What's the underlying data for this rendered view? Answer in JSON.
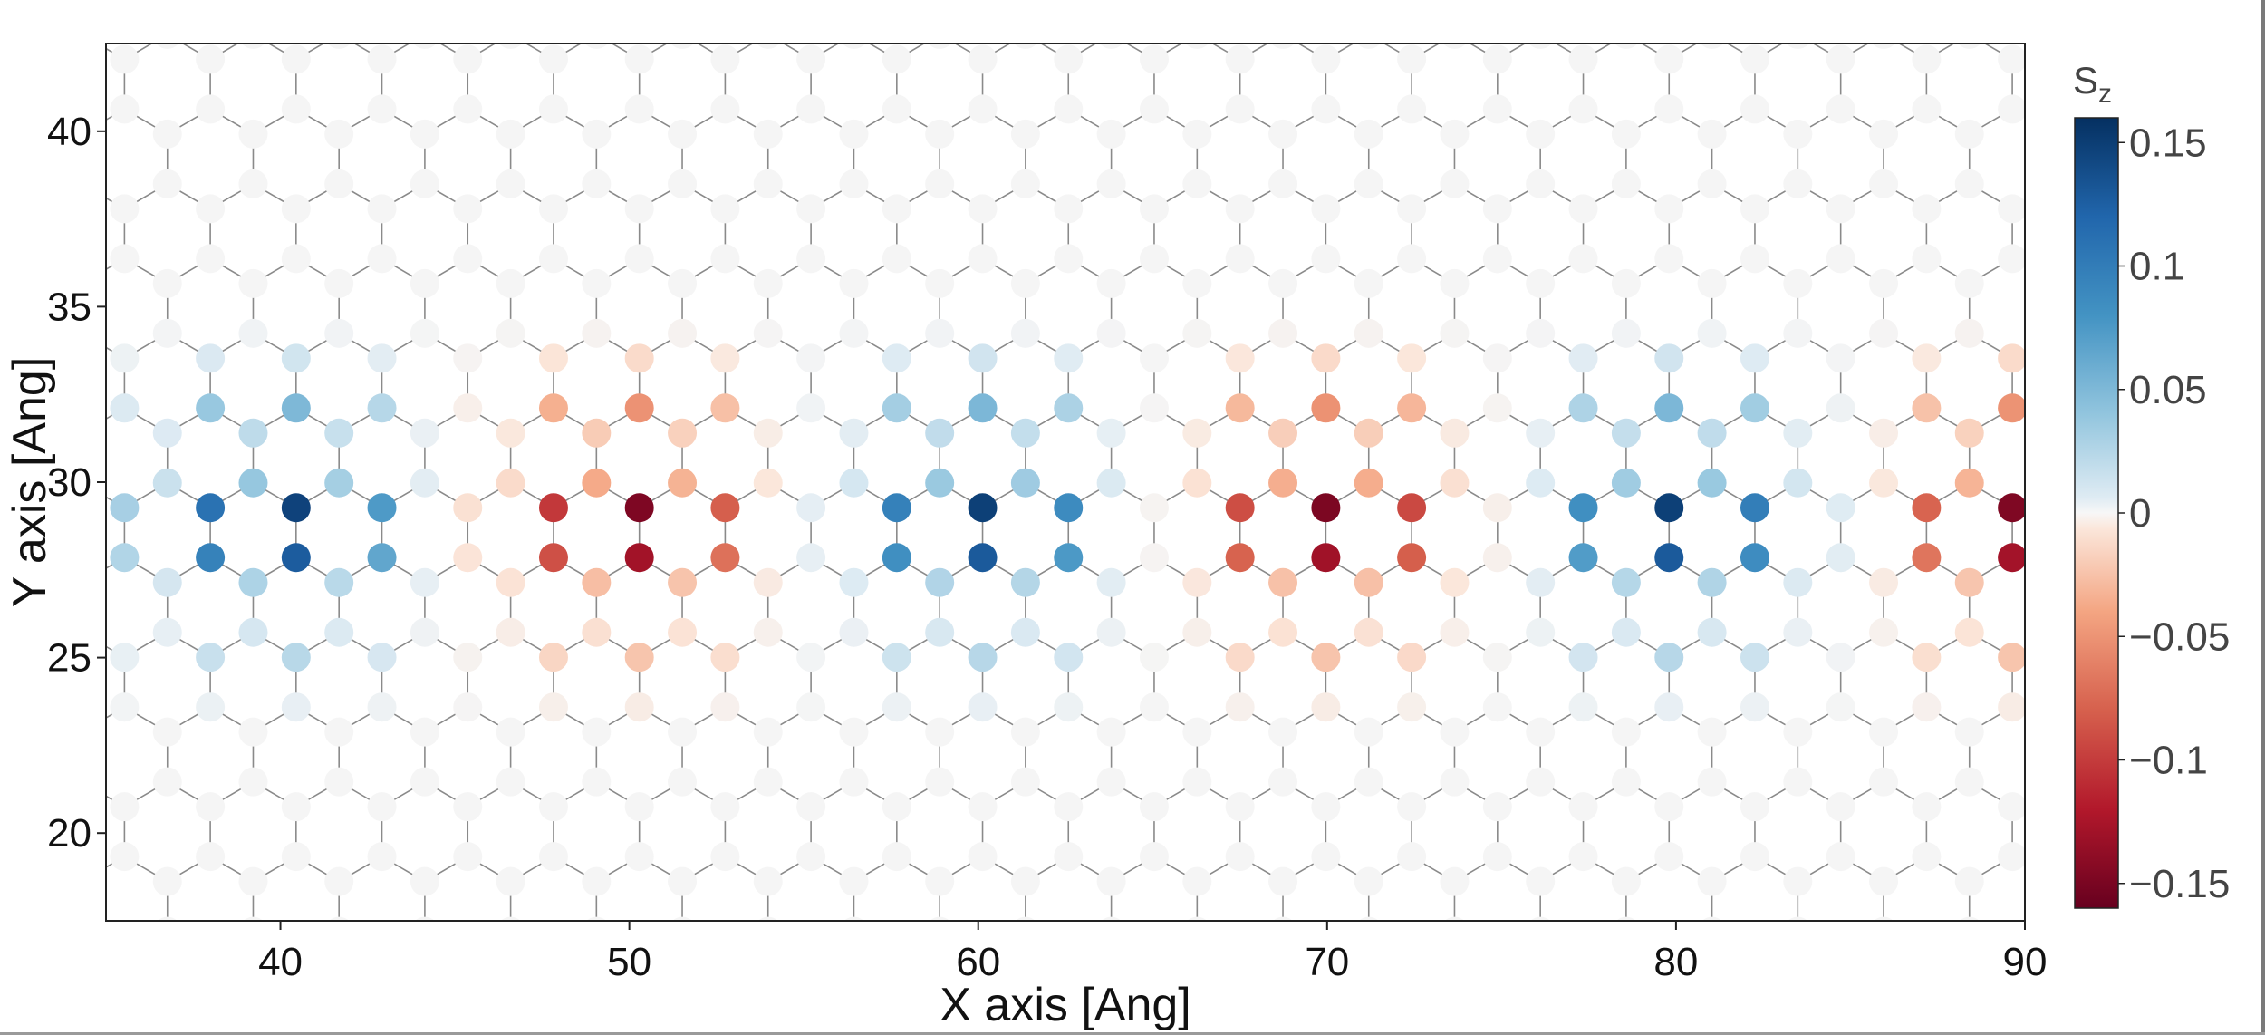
{
  "chart_data": {
    "type": "scatter",
    "title": "",
    "xlabel": "X axis [Ang]",
    "ylabel": "Y axis [Ang]",
    "xlim": [
      35,
      90
    ],
    "ylim": [
      17.5,
      42.5
    ],
    "xticks": [
      40,
      50,
      60,
      70,
      80,
      90
    ],
    "xtick_labels": [
      "40",
      "50",
      "60",
      "70",
      "80",
      "90"
    ],
    "yticks": [
      20,
      25,
      30,
      35,
      40
    ],
    "ytick_labels": [
      "20",
      "25",
      "30",
      "35",
      "40"
    ],
    "grid": false,
    "colorbar": {
      "label": "S",
      "label_subscript": "z",
      "range": [
        -0.16,
        0.16
      ],
      "colormap": "RdBu",
      "ticks": [
        0.15,
        0.1,
        0.05,
        0,
        -0.05,
        -0.1,
        -0.15
      ],
      "tick_labels": [
        "0.15",
        "0.1",
        "0.05",
        "0",
        "−0.05",
        "−0.1",
        "−0.15"
      ]
    },
    "lattice": {
      "description": "honeycomb lattice of atomic sites colored by local spin S_z; a ribbon between y≈24 and y≈34 hosts alternating blue (positive) and red (negative) triangulene-like motifs",
      "bond_length_ang": 1.42
    },
    "motifs": [
      {
        "center": [
          40,
          29
        ],
        "sign": 1
      },
      {
        "center": [
          50,
          29
        ],
        "sign": -1
      },
      {
        "center": [
          60,
          29
        ],
        "sign": 1
      },
      {
        "center": [
          70,
          29
        ],
        "sign": -1
      },
      {
        "center": [
          80,
          29
        ],
        "sign": 1
      },
      {
        "center": [
          90,
          29
        ],
        "sign": -1
      }
    ]
  }
}
